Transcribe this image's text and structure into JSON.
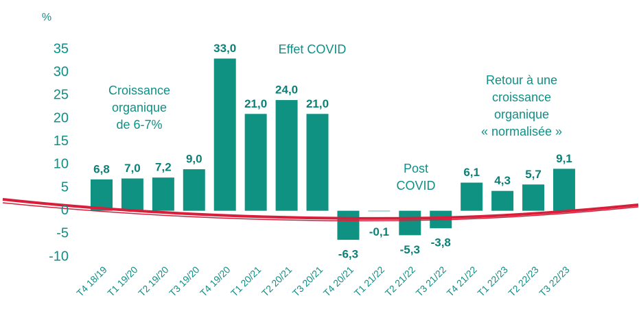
{
  "chart_data": {
    "type": "bar",
    "y_label": "%",
    "categories": [
      "T4 18/19",
      "T1 19/20",
      "T2 19/20",
      "T3 19/20",
      "T4 19/20",
      "T1 20/21",
      "T2 20/21",
      "T3 20/21",
      "T4 20/21",
      "T1 21/22",
      "T2 21/22",
      "T3 21/22",
      "T4 21/22",
      "T1 22/23",
      "T2 22/23",
      "T3 22/23"
    ],
    "values": [
      6.8,
      7.0,
      7.2,
      9.0,
      33.0,
      21.0,
      24.0,
      21.0,
      -6.3,
      -0.1,
      -5.3,
      -3.8,
      6.1,
      4.3,
      5.7,
      9.1
    ],
    "value_labels": [
      "6,8",
      "7,0",
      "7,2",
      "9,0",
      "33,0",
      "21,0",
      "24,0",
      "21,0",
      "-6,3",
      "-0,1",
      "-5,3",
      "-3,8",
      "6,1",
      "4,3",
      "5,7",
      "9,1"
    ],
    "color": "#109283",
    "ylim": [
      -10,
      35
    ],
    "yticks": [
      -10,
      -5,
      0,
      5,
      10,
      15,
      20,
      25,
      30,
      35
    ],
    "grid": false,
    "annotations": [
      {
        "lines": [
          "Croissance",
          "organique",
          "de 6-7%"
        ]
      },
      {
        "lines": [
          "Effet COVID"
        ]
      },
      {
        "lines": [
          "Post",
          "COVID"
        ]
      },
      {
        "lines": [
          "Retour à une",
          "croissance",
          "organique",
          "« normalisée »"
        ]
      }
    ]
  }
}
